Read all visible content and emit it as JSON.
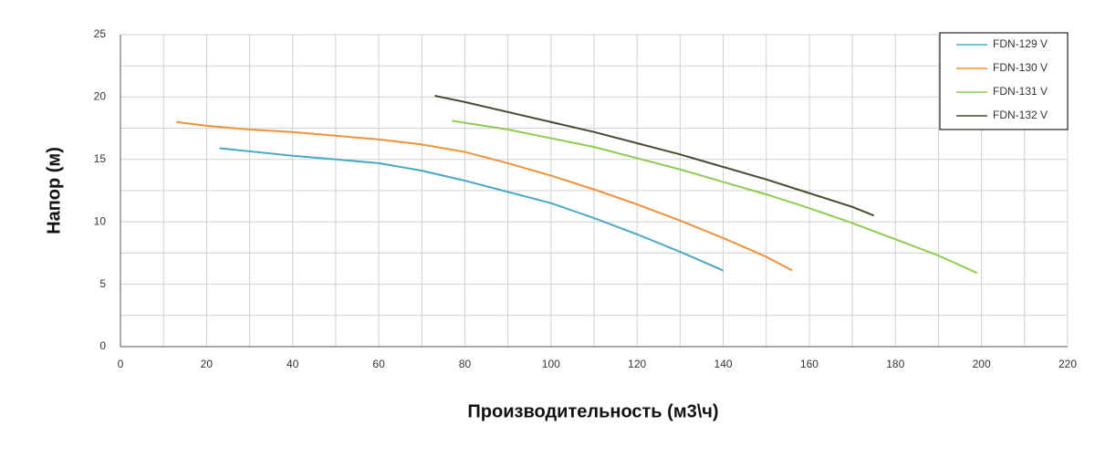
{
  "chart_data": {
    "type": "line",
    "xlabel": "Производительность (м3\\ч)",
    "ylabel": "Напор (м)",
    "xlim": [
      0,
      220
    ],
    "xticks": [
      0,
      20,
      40,
      60,
      80,
      100,
      120,
      140,
      160,
      180,
      200,
      220
    ],
    "ylim": [
      0,
      25
    ],
    "yticks": [
      0,
      5,
      10,
      15,
      20,
      25
    ],
    "grid": true,
    "legend": "upper right",
    "series": [
      {
        "name": "FDN-129 V",
        "color": "#4aa7c9",
        "x": [
          23,
          40,
          50,
          60,
          70,
          80,
          90,
          100,
          110,
          120,
          130,
          140
        ],
        "values": [
          15.9,
          15.3,
          15.0,
          14.7,
          14.1,
          13.3,
          12.4,
          11.5,
          10.3,
          9.0,
          7.6,
          6.1
        ]
      },
      {
        "name": "FDN-130 V",
        "color": "#f0913a",
        "x": [
          13,
          20,
          30,
          40,
          50,
          60,
          70,
          80,
          90,
          100,
          110,
          120,
          130,
          140,
          150,
          156
        ],
        "values": [
          18.0,
          17.7,
          17.4,
          17.2,
          16.9,
          16.6,
          16.2,
          15.6,
          14.7,
          13.7,
          12.6,
          11.4,
          10.1,
          8.7,
          7.2,
          6.1
        ]
      },
      {
        "name": "FDN-131 V",
        "color": "#8fcb4f",
        "x": [
          77,
          90,
          100,
          110,
          120,
          130,
          140,
          150,
          160,
          170,
          180,
          190,
          199
        ],
        "values": [
          18.1,
          17.4,
          16.7,
          16.0,
          15.1,
          14.2,
          13.2,
          12.2,
          11.1,
          9.9,
          8.6,
          7.3,
          5.9
        ]
      },
      {
        "name": "FDN-132 V",
        "color": "#4b4a2e",
        "x": [
          73,
          80,
          90,
          100,
          110,
          120,
          130,
          140,
          150,
          160,
          170,
          175
        ],
        "values": [
          20.1,
          19.6,
          18.8,
          18.0,
          17.2,
          16.3,
          15.4,
          14.4,
          13.4,
          12.3,
          11.2,
          10.5
        ]
      }
    ]
  }
}
